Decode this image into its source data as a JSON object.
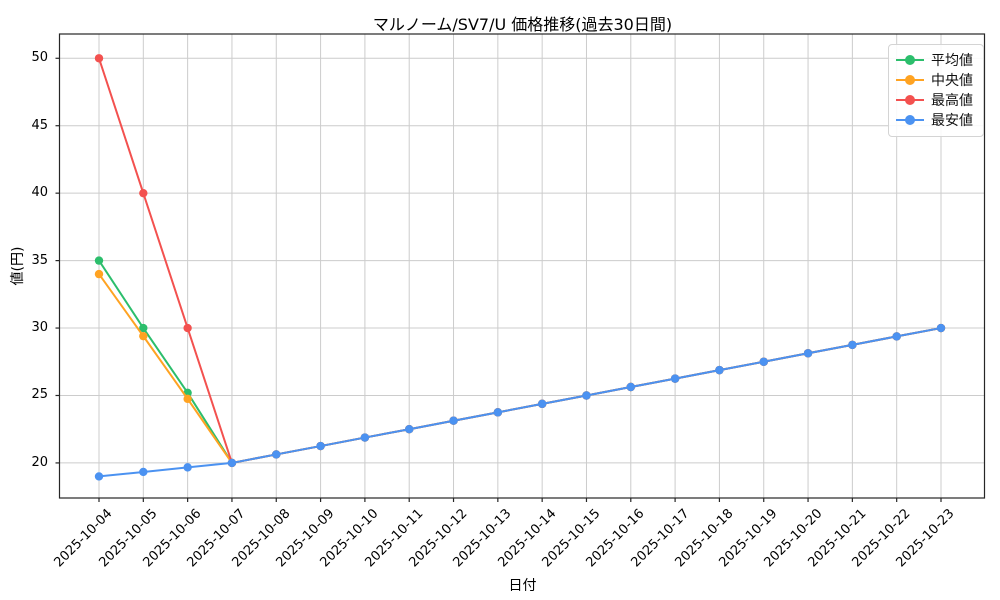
{
  "chart_data": {
    "type": "line",
    "title": "マルノーム/SV7/U 価格推移(過去30日間)",
    "xlabel": "日付",
    "ylabel": "値(円)",
    "x": [
      "2025-10-04",
      "2025-10-05",
      "2025-10-06",
      "2025-10-07",
      "2025-10-08",
      "2025-10-09",
      "2025-10-10",
      "2025-10-11",
      "2025-10-12",
      "2025-10-13",
      "2025-10-14",
      "2025-10-15",
      "2025-10-16",
      "2025-10-17",
      "2025-10-18",
      "2025-10-19",
      "2025-10-20",
      "2025-10-21",
      "2025-10-22",
      "2025-10-23"
    ],
    "series": [
      {
        "key": "mean",
        "name": "平均値",
        "color": "#2cbe6c",
        "values": [
          35.0,
          30.0,
          25.2,
          20.0,
          20.63,
          21.25,
          21.88,
          22.5,
          23.13,
          23.75,
          24.38,
          25.0,
          25.63,
          26.25,
          26.88,
          27.5,
          28.13,
          28.75,
          29.38,
          30.0
        ]
      },
      {
        "key": "median",
        "name": "中央値",
        "color": "#ffa322",
        "values": [
          34.0,
          29.4,
          24.75,
          20.0,
          20.63,
          21.25,
          21.88,
          22.5,
          23.13,
          23.75,
          24.38,
          25.0,
          25.63,
          26.25,
          26.88,
          27.5,
          28.13,
          28.75,
          29.38,
          30.0
        ]
      },
      {
        "key": "max",
        "name": "最高値",
        "color": "#f3514f",
        "values": [
          50.0,
          40.0,
          30.0,
          20.0,
          20.63,
          21.25,
          21.88,
          22.5,
          23.13,
          23.75,
          24.38,
          25.0,
          25.63,
          26.25,
          26.88,
          27.5,
          28.13,
          28.75,
          29.38,
          30.0
        ]
      },
      {
        "key": "min",
        "name": "最安値",
        "color": "#4b92f1",
        "values": [
          19.0,
          19.33,
          19.67,
          20.0,
          20.63,
          21.25,
          21.88,
          22.5,
          23.13,
          23.75,
          24.38,
          25.0,
          25.63,
          26.25,
          26.88,
          27.5,
          28.13,
          28.75,
          29.38,
          30.0
        ]
      }
    ],
    "yticks": [
      20,
      25,
      30,
      35,
      40,
      45,
      50
    ],
    "ylim": [
      17.4,
      51.8
    ],
    "grid": true,
    "grid_color": "#cccccc",
    "axis_color": "#262626",
    "legend_position": "upper right",
    "marker": "circle"
  }
}
